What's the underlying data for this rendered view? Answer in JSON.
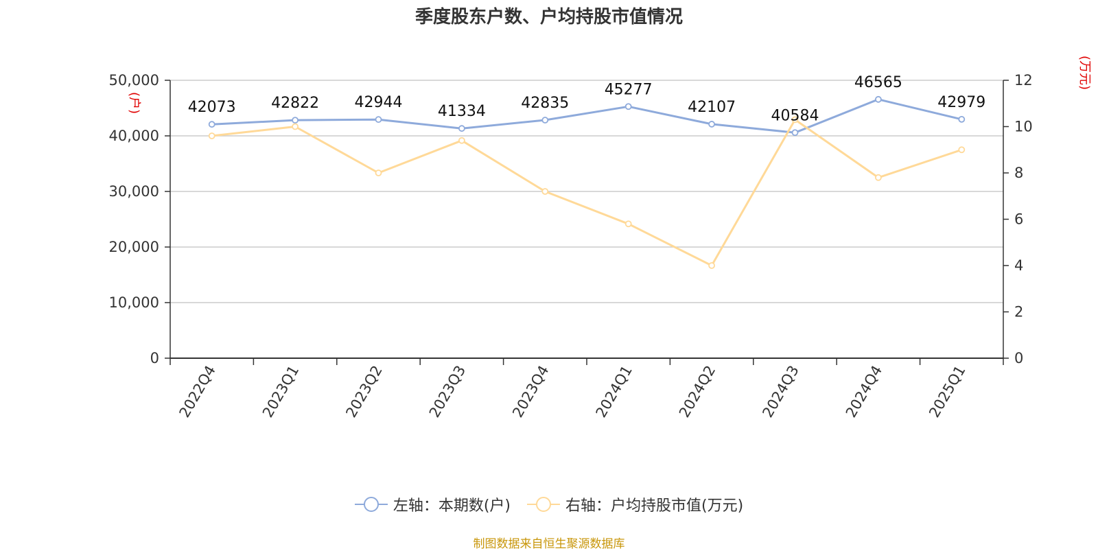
{
  "title": "季度股东户数、户均持股市值情况",
  "source": "制图数据来自恒生聚源数据库",
  "colors": {
    "left_series": "#8eaadb",
    "right_series": "#ffd998",
    "unit_text": "#e00000",
    "source_text": "#c8960a"
  },
  "chart_data": {
    "type": "line",
    "title": "季度股东户数、户均持股市值情况",
    "categories": [
      "2022Q4",
      "2023Q1",
      "2023Q2",
      "2023Q3",
      "2023Q4",
      "2024Q1",
      "2024Q2",
      "2024Q3",
      "2024Q4",
      "2025Q1"
    ],
    "left_axis": {
      "unit": "(户)",
      "range": [
        0,
        50000
      ],
      "ticks": [
        "0",
        "10,000",
        "20,000",
        "30,000",
        "40,000",
        "50,000"
      ]
    },
    "right_axis": {
      "unit": "(万元)",
      "range": [
        0,
        12
      ],
      "ticks": [
        "0",
        "2",
        "4",
        "6",
        "8",
        "10",
        "12"
      ]
    },
    "grid": true,
    "legend_position": "bottom",
    "series": [
      {
        "name": "左轴：本期数(户)",
        "axis": "left",
        "values": [
          42073,
          42822,
          42944,
          41334,
          42835,
          45277,
          42107,
          40584,
          46565,
          42979
        ],
        "labels": [
          "42073",
          "42822",
          "42944",
          "41334",
          "42835",
          "45277",
          "42107",
          "40584",
          "46565",
          "42979"
        ]
      },
      {
        "name": "右轴：户均持股市值(万元)",
        "axis": "right",
        "values": [
          9.6,
          10.0,
          8.0,
          9.4,
          7.2,
          5.8,
          4.0,
          10.3,
          7.8,
          9.0
        ]
      }
    ]
  }
}
